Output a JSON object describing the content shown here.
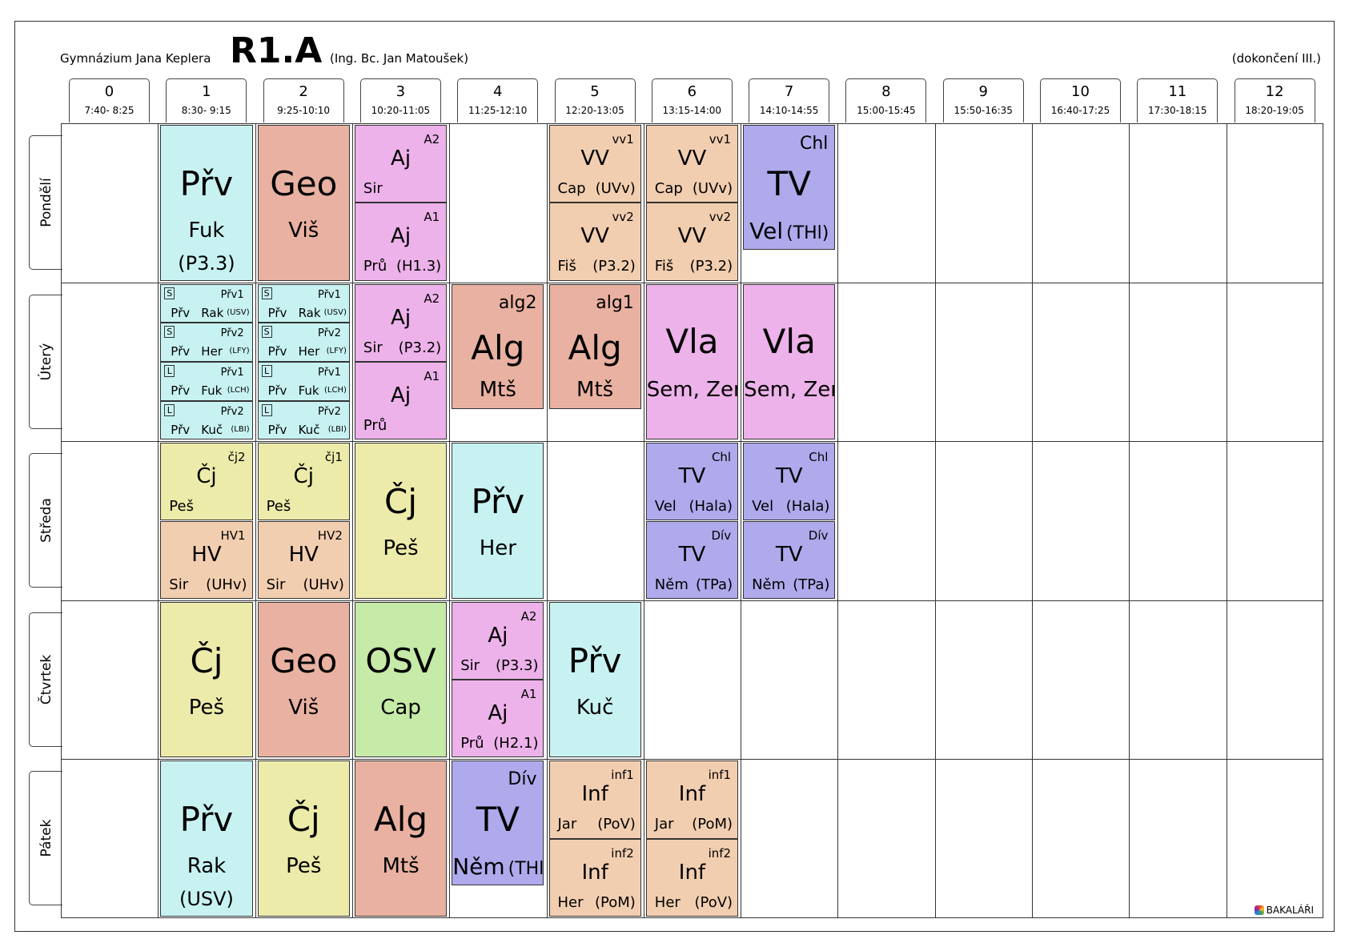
{
  "header": {
    "school": "Gymnázium Jana Keplera",
    "class": "R1.A",
    "teacher": "(Ing. Bc. Jan Matoušek)",
    "note": "(dokončení III.)"
  },
  "periods": [
    {
      "n": "0",
      "time": "7:40- 8:25"
    },
    {
      "n": "1",
      "time": "8:30- 9:15"
    },
    {
      "n": "2",
      "time": "9:25-10:10"
    },
    {
      "n": "3",
      "time": "10:20-11:05"
    },
    {
      "n": "4",
      "time": "11:25-12:10"
    },
    {
      "n": "5",
      "time": "12:20-13:05"
    },
    {
      "n": "6",
      "time": "13:15-14:00"
    },
    {
      "n": "7",
      "time": "14:10-14:55"
    },
    {
      "n": "8",
      "time": "15:00-15:45"
    },
    {
      "n": "9",
      "time": "15:50-16:35"
    },
    {
      "n": "10",
      "time": "16:40-17:25"
    },
    {
      "n": "11",
      "time": "17:30-18:15"
    },
    {
      "n": "12",
      "time": "18:20-19:05"
    }
  ],
  "days": [
    "Pondělí",
    "Úterý",
    "Středa",
    "Čtvrtek",
    "Pátek"
  ],
  "lessons": {
    "po1": {
      "subject": "Přv",
      "teacher": "Fuk",
      "room": "(P3.3)"
    },
    "po2": {
      "subject": "Geo",
      "teacher": "Viš"
    },
    "po3a": {
      "group": "A2",
      "subject": "Aj",
      "teacher": "Sir"
    },
    "po3b": {
      "group": "A1",
      "subject": "Aj",
      "teacher": "Prů",
      "room": "(H1.3)"
    },
    "po5a": {
      "group": "vv1",
      "subject": "VV",
      "teacher": "Cap",
      "room": "(UVv)"
    },
    "po5b": {
      "group": "vv2",
      "subject": "VV",
      "teacher": "Fiš",
      "room": "(P3.2)"
    },
    "po6a": {
      "group": "vv1",
      "subject": "VV",
      "teacher": "Cap",
      "room": "(UVv)"
    },
    "po6b": {
      "group": "vv2",
      "subject": "VV",
      "teacher": "Fiš",
      "room": "(P3.2)"
    },
    "po7": {
      "group": "Chl",
      "subject": "TV",
      "teacher": "Vel",
      "room": "(THl)"
    },
    "ut1": [
      {
        "mark": "S",
        "group": "Přv1",
        "subject": "Přv",
        "teacher": "Rak",
        "room": "(USV)"
      },
      {
        "mark": "S",
        "group": "Přv2",
        "subject": "Přv",
        "teacher": "Her",
        "room": "(LFY)"
      },
      {
        "mark": "L",
        "group": "Přv1",
        "subject": "Přv",
        "teacher": "Fuk",
        "room": "(LCH)"
      },
      {
        "mark": "L",
        "group": "Přv2",
        "subject": "Přv",
        "teacher": "Kuč",
        "room": "(LBI)"
      }
    ],
    "ut2": [
      {
        "mark": "S",
        "group": "Přv1",
        "subject": "Přv",
        "teacher": "Rak",
        "room": "(USV)"
      },
      {
        "mark": "S",
        "group": "Přv2",
        "subject": "Přv",
        "teacher": "Her",
        "room": "(LFY)"
      },
      {
        "mark": "L",
        "group": "Přv1",
        "subject": "Přv",
        "teacher": "Fuk",
        "room": "(LCH)"
      },
      {
        "mark": "L",
        "group": "Přv2",
        "subject": "Přv",
        "teacher": "Kuč",
        "room": "(LBI)"
      }
    ],
    "ut3a": {
      "group": "A2",
      "subject": "Aj",
      "teacher": "Sir",
      "room": "(P3.2)"
    },
    "ut3b": {
      "group": "A1",
      "subject": "Aj",
      "teacher": "Prů"
    },
    "ut4": {
      "group": "alg2",
      "subject": "Alg",
      "teacher": "Mtš"
    },
    "ut5": {
      "group": "alg1",
      "subject": "Alg",
      "teacher": "Mtš"
    },
    "ut6": {
      "subject": "Vla",
      "teacher": "Sem, Zem"
    },
    "ut7": {
      "subject": "Vla",
      "teacher": "Sem, Zem"
    },
    "st1a": {
      "group": "čj2",
      "subject": "Čj",
      "teacher": "Peš"
    },
    "st1b": {
      "group": "HV1",
      "subject": "HV",
      "teacher": "Sir",
      "room": "(UHv)"
    },
    "st2a": {
      "group": "čj1",
      "subject": "Čj",
      "teacher": "Peš"
    },
    "st2b": {
      "group": "HV2",
      "subject": "HV",
      "teacher": "Sir",
      "room": "(UHv)"
    },
    "st3": {
      "subject": "Čj",
      "teacher": "Peš"
    },
    "st4": {
      "subject": "Přv",
      "teacher": "Her"
    },
    "st6a": {
      "group": "Chl",
      "subject": "TV",
      "teacher": "Vel",
      "room": "(Hala)"
    },
    "st6b": {
      "group": "Dív",
      "subject": "TV",
      "teacher": "Něm",
      "room": "(TPa)"
    },
    "st7a": {
      "group": "Chl",
      "subject": "TV",
      "teacher": "Vel",
      "room": "(Hala)"
    },
    "st7b": {
      "group": "Dív",
      "subject": "TV",
      "teacher": "Něm",
      "room": "(TPa)"
    },
    "ct1": {
      "subject": "Čj",
      "teacher": "Peš"
    },
    "ct2": {
      "subject": "Geo",
      "teacher": "Viš"
    },
    "ct3": {
      "subject": "OSV",
      "teacher": "Cap"
    },
    "ct4a": {
      "group": "A2",
      "subject": "Aj",
      "teacher": "Sir",
      "room": "(P3.3)"
    },
    "ct4b": {
      "group": "A1",
      "subject": "Aj",
      "teacher": "Prů",
      "room": "(H2.1)"
    },
    "ct5": {
      "subject": "Přv",
      "teacher": "Kuč"
    },
    "pa1": {
      "subject": "Přv",
      "teacher": "Rak",
      "room": "(USV)"
    },
    "pa2": {
      "subject": "Čj",
      "teacher": "Peš"
    },
    "pa3": {
      "subject": "Alg",
      "teacher": "Mtš"
    },
    "pa4": {
      "group": "Dív",
      "subject": "TV",
      "teacher": "Něm",
      "room": "(THl)"
    },
    "pa5a": {
      "group": "inf1",
      "subject": "Inf",
      "teacher": "Jar",
      "room": "(PoV)"
    },
    "pa5b": {
      "group": "inf2",
      "subject": "Inf",
      "teacher": "Her",
      "room": "(PoM)"
    },
    "pa6a": {
      "group": "inf1",
      "subject": "Inf",
      "teacher": "Jar",
      "room": "(PoM)"
    },
    "pa6b": {
      "group": "inf2",
      "subject": "Inf",
      "teacher": "Her",
      "room": "(PoV)"
    }
  },
  "logo": {
    "text": "BAKALÁŘI",
    "icon": "bakalari-logo-icon"
  }
}
